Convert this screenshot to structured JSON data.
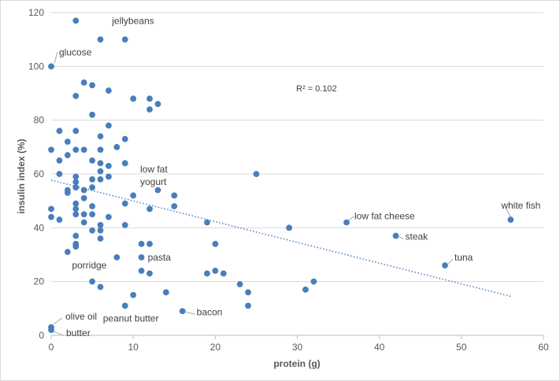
{
  "chart_data": {
    "type": "scatter",
    "xlabel": "protein (g)",
    "ylabel": "insulin index (%)",
    "xlim": [
      0,
      60
    ],
    "ylim": [
      0,
      120
    ],
    "x_ticks": [
      0,
      10,
      20,
      30,
      40,
      50,
      60
    ],
    "y_ticks": [
      0,
      20,
      40,
      60,
      80,
      100,
      120
    ],
    "grid": "horizontal",
    "marker_color": "#4a7ebb",
    "trendline": {
      "style": "dotted",
      "color": "#4a7ebb",
      "from": [
        0,
        57.7
      ],
      "to": [
        56,
        14.5
      ]
    },
    "r_squared_label": "R² = 0.102",
    "points": [
      {
        "x": 3,
        "y": 117
      },
      {
        "x": 6,
        "y": 110
      },
      {
        "x": 9,
        "y": 110
      },
      {
        "x": 0,
        "y": 100
      },
      {
        "x": 4,
        "y": 94
      },
      {
        "x": 5,
        "y": 93
      },
      {
        "x": 7,
        "y": 91
      },
      {
        "x": 3,
        "y": 89
      },
      {
        "x": 10,
        "y": 88
      },
      {
        "x": 12,
        "y": 88
      },
      {
        "x": 13,
        "y": 86
      },
      {
        "x": 12,
        "y": 84
      },
      {
        "x": 5,
        "y": 82
      },
      {
        "x": 7,
        "y": 78
      },
      {
        "x": 1,
        "y": 76
      },
      {
        "x": 3,
        "y": 76
      },
      {
        "x": 6,
        "y": 74
      },
      {
        "x": 9,
        "y": 73
      },
      {
        "x": 2,
        "y": 72
      },
      {
        "x": 0,
        "y": 69
      },
      {
        "x": 3,
        "y": 69
      },
      {
        "x": 4,
        "y": 69
      },
      {
        "x": 6,
        "y": 69
      },
      {
        "x": 8,
        "y": 70
      },
      {
        "x": 2,
        "y": 67
      },
      {
        "x": 1,
        "y": 65
      },
      {
        "x": 5,
        "y": 65
      },
      {
        "x": 6,
        "y": 64
      },
      {
        "x": 7,
        "y": 63
      },
      {
        "x": 9,
        "y": 64
      },
      {
        "x": 6,
        "y": 61
      },
      {
        "x": 1,
        "y": 60
      },
      {
        "x": 3,
        "y": 59
      },
      {
        "x": 5,
        "y": 58
      },
      {
        "x": 6,
        "y": 58
      },
      {
        "x": 7,
        "y": 59
      },
      {
        "x": 3,
        "y": 57
      },
      {
        "x": 3,
        "y": 55
      },
      {
        "x": 5,
        "y": 55
      },
      {
        "x": 2,
        "y": 54
      },
      {
        "x": 2,
        "y": 53
      },
      {
        "x": 4,
        "y": 54
      },
      {
        "x": 10,
        "y": 52
      },
      {
        "x": 13,
        "y": 54
      },
      {
        "x": 15,
        "y": 52
      },
      {
        "x": 25,
        "y": 60
      },
      {
        "x": 4,
        "y": 51
      },
      {
        "x": 3,
        "y": 49
      },
      {
        "x": 9,
        "y": 49
      },
      {
        "x": 0,
        "y": 47
      },
      {
        "x": 3,
        "y": 47
      },
      {
        "x": 5,
        "y": 48
      },
      {
        "x": 12,
        "y": 47
      },
      {
        "x": 15,
        "y": 48
      },
      {
        "x": 0,
        "y": 44
      },
      {
        "x": 3,
        "y": 45
      },
      {
        "x": 4,
        "y": 45
      },
      {
        "x": 5,
        "y": 45
      },
      {
        "x": 7,
        "y": 44
      },
      {
        "x": 1,
        "y": 43
      },
      {
        "x": 4,
        "y": 42
      },
      {
        "x": 6,
        "y": 41
      },
      {
        "x": 9,
        "y": 41
      },
      {
        "x": 5,
        "y": 39
      },
      {
        "x": 6,
        "y": 39
      },
      {
        "x": 19,
        "y": 42
      },
      {
        "x": 29,
        "y": 40
      },
      {
        "x": 36,
        "y": 42
      },
      {
        "x": 56,
        "y": 43
      },
      {
        "x": 3,
        "y": 37
      },
      {
        "x": 6,
        "y": 36
      },
      {
        "x": 42,
        "y": 37
      },
      {
        "x": 3,
        "y": 34
      },
      {
        "x": 3,
        "y": 33
      },
      {
        "x": 11,
        "y": 34
      },
      {
        "x": 12,
        "y": 34
      },
      {
        "x": 20,
        "y": 34
      },
      {
        "x": 2,
        "y": 31
      },
      {
        "x": 8,
        "y": 29
      },
      {
        "x": 11,
        "y": 29
      },
      {
        "x": 48,
        "y": 26
      },
      {
        "x": 11,
        "y": 24
      },
      {
        "x": 12,
        "y": 23
      },
      {
        "x": 19,
        "y": 23
      },
      {
        "x": 20,
        "y": 24
      },
      {
        "x": 21,
        "y": 23
      },
      {
        "x": 5,
        "y": 20
      },
      {
        "x": 6,
        "y": 18
      },
      {
        "x": 23,
        "y": 19
      },
      {
        "x": 32,
        "y": 20
      },
      {
        "x": 31,
        "y": 17
      },
      {
        "x": 14,
        "y": 16
      },
      {
        "x": 24,
        "y": 16
      },
      {
        "x": 10,
        "y": 15
      },
      {
        "x": 9,
        "y": 11
      },
      {
        "x": 24,
        "y": 11
      },
      {
        "x": 16,
        "y": 9
      },
      {
        "x": 0,
        "y": 3
      },
      {
        "x": 0,
        "y": 2
      }
    ],
    "annotations": [
      {
        "label": "jellybeans",
        "x": 3,
        "y": 117
      },
      {
        "label": "glucose",
        "x": 0,
        "y": 100
      },
      {
        "label": "low fat",
        "x": 12,
        "y": 84,
        "label2": "yogurt"
      },
      {
        "label": "low fat cheese",
        "x": 36,
        "y": 42
      },
      {
        "label": "white fish",
        "x": 56,
        "y": 43
      },
      {
        "label": "steak",
        "x": 42,
        "y": 37
      },
      {
        "label": "tuna",
        "x": 48,
        "y": 26
      },
      {
        "label": "porridge",
        "x": 8,
        "y": 29
      },
      {
        "label": "pasta",
        "x": 11,
        "y": 29
      },
      {
        "label": "peanut butter",
        "x": 9,
        "y": 11
      },
      {
        "label": "bacon",
        "x": 16,
        "y": 9
      },
      {
        "label": "olive oil",
        "x": 0,
        "y": 3
      },
      {
        "label": "butter",
        "x": 0,
        "y": 2
      }
    ]
  }
}
